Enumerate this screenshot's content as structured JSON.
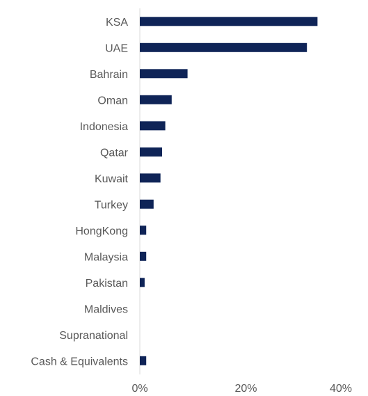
{
  "chart_data": {
    "type": "bar",
    "orientation": "horizontal",
    "categories": [
      "KSA",
      "UAE",
      "Bahrain",
      "Oman",
      "Indonesia",
      "Qatar",
      "Kuwait",
      "Turkey",
      "HongKong",
      "Malaysia",
      "Pakistan",
      "Maldives",
      "Supranational",
      "Cash & Equivalents"
    ],
    "values": [
      33.5,
      31.5,
      9.0,
      6.0,
      4.8,
      4.2,
      3.9,
      2.6,
      1.2,
      1.2,
      0.9,
      0.0,
      0.0,
      1.2
    ],
    "xlim": [
      0,
      40
    ],
    "xticks": [
      0,
      20,
      40
    ],
    "xtick_labels": [
      "0%",
      "20%",
      "40%"
    ],
    "bar_color": "#0f2457",
    "grid": false,
    "title": "",
    "xlabel": "",
    "ylabel": ""
  }
}
